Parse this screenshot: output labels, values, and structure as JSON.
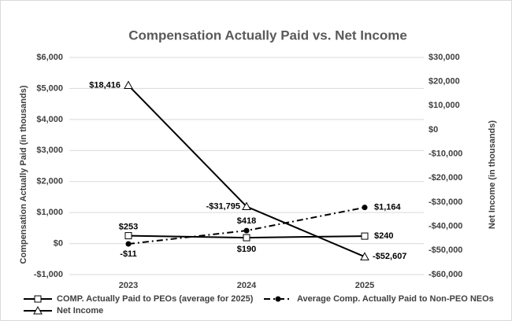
{
  "chart_data": {
    "type": "line",
    "title": "Compensation Actually Paid vs. Net Income",
    "y_label": "Compensation Actually Paid (in thousands)",
    "y2_label": "Net Income (in thousands)",
    "categories": [
      "2023",
      "2024",
      "2025"
    ],
    "ylim": [
      -1000,
      6000
    ],
    "yticks": [
      {
        "value": -1000,
        "label": "-$1,000"
      },
      {
        "value": 0,
        "label": "$0"
      },
      {
        "value": 1000,
        "label": "$1,000"
      },
      {
        "value": 2000,
        "label": "$2,000"
      },
      {
        "value": 3000,
        "label": "$3,000"
      },
      {
        "value": 4000,
        "label": "$4,000"
      },
      {
        "value": 5000,
        "label": "$5,000"
      },
      {
        "value": 6000,
        "label": "$6,000"
      }
    ],
    "y2lim": [
      -60000,
      30000
    ],
    "y2ticks": [
      {
        "value": -60000,
        "label": "-$60,000"
      },
      {
        "value": -50000,
        "label": "-$50,000"
      },
      {
        "value": -40000,
        "label": "-$40,000"
      },
      {
        "value": -30000,
        "label": "-$30,000"
      },
      {
        "value": -20000,
        "label": "-$20,000"
      },
      {
        "value": -10000,
        "label": "-$10,000"
      },
      {
        "value": 0,
        "label": "$0"
      },
      {
        "value": 10000,
        "label": "$10,000"
      },
      {
        "value": 20000,
        "label": "$20,000"
      },
      {
        "value": 30000,
        "label": "$30,000"
      }
    ],
    "grid": true,
    "legend": "bottom",
    "series": [
      {
        "name": "COMP. Actually Paid to PEOs (average for 2025)",
        "color": "#000000",
        "marker": "square",
        "dash": "solid",
        "values": [
          253,
          190,
          240
        ],
        "value_labels": [
          "$253",
          "$190",
          "$240"
        ]
      },
      {
        "name": "Average Comp. Actually Paid to Non-PEO NEOs",
        "color": "#000000",
        "marker": "circle",
        "dash": "dashdot",
        "values": [
          -11,
          418,
          1164
        ],
        "value_labels": [
          "-$11",
          "$418",
          "$1,164"
        ]
      },
      {
        "name": "Net Income",
        "color": "#000000",
        "marker": "triangle",
        "dash": "solid",
        "axis": "y2",
        "values": [
          18416,
          -31795,
          -52607
        ],
        "value_labels": [
          "$18,416",
          "-$31,795",
          "-$52,607"
        ]
      }
    ]
  }
}
